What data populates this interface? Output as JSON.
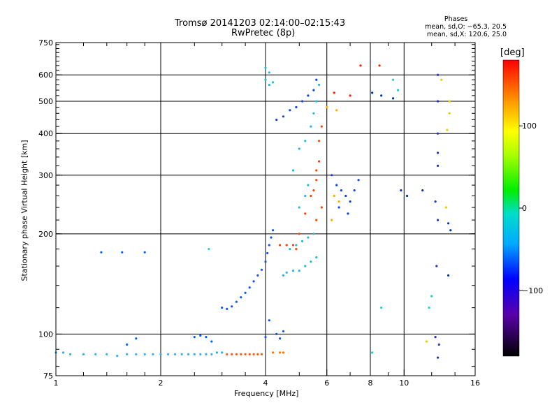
{
  "chart_data": {
    "type": "scatter",
    "title": "Tromsø 20141203 02:14:00–02:15:43",
    "subtitle": "RwPretec (8p)",
    "xlabel": "Frequency [MHz]",
    "ylabel": "Stationary phase Virtual Height [km]",
    "xscale": "log",
    "yscale": "log",
    "xlim": [
      1,
      16
    ],
    "ylim": [
      75,
      750
    ],
    "x_ticks": [
      1,
      2,
      4,
      6,
      8,
      10,
      16
    ],
    "x_tick_labels": [
      "1",
      "2",
      "4",
      "6",
      "8",
      "10",
      "16"
    ],
    "y_ticks": [
      75,
      100,
      200,
      300,
      400,
      500,
      600,
      750
    ],
    "y_tick_labels": [
      "75",
      "100",
      "200",
      "300",
      "400",
      "500",
      "600",
      "750"
    ],
    "x_gridlines": [
      2,
      4,
      6,
      8,
      10
    ],
    "y_gridlines": [
      100,
      200,
      300,
      400,
      500,
      600
    ],
    "grid": true,
    "phases_legend": {
      "title": "Phases",
      "line_o": "mean, sd,O: −65.3, 20.5",
      "line_x": "mean, sd,X: 120.6, 25.0"
    },
    "colorbar": {
      "label": "[deg]",
      "ticks": [
        100,
        0,
        -100
      ],
      "tick_labels": [
        "100",
        "0",
        "−100"
      ],
      "range": [
        -180,
        180
      ],
      "colormap": "rainbow"
    },
    "series": [
      {
        "color": "#33aaee",
        "points": [
          [
            1.0,
            88
          ],
          [
            1.05,
            88
          ],
          [
            1.1,
            87
          ],
          [
            1.2,
            87
          ],
          [
            1.3,
            87
          ],
          [
            1.4,
            87
          ],
          [
            1.5,
            86
          ],
          [
            1.6,
            87
          ],
          [
            1.7,
            87
          ],
          [
            1.8,
            87
          ],
          [
            1.9,
            87
          ],
          [
            2.0,
            87
          ],
          [
            2.1,
            87
          ],
          [
            2.2,
            87
          ],
          [
            2.3,
            87
          ],
          [
            2.4,
            87
          ],
          [
            2.5,
            87
          ],
          [
            2.6,
            87
          ],
          [
            2.7,
            87
          ],
          [
            2.8,
            87
          ],
          [
            2.9,
            88
          ],
          [
            3.0,
            88
          ]
        ]
      },
      {
        "color": "#0060ff",
        "points": [
          [
            1.35,
            176
          ],
          [
            1.55,
            176
          ],
          [
            1.8,
            176
          ],
          [
            1.6,
            93
          ],
          [
            1.7,
            97
          ],
          [
            2.5,
            98
          ],
          [
            2.6,
            99
          ],
          [
            2.7,
            98
          ],
          [
            2.8,
            95
          ]
        ]
      },
      {
        "color": "#33ccdd",
        "points": [
          [
            2.75,
            180
          ]
        ]
      },
      {
        "color": "#ff5500",
        "points": [
          [
            3.1,
            87
          ],
          [
            3.2,
            87
          ],
          [
            3.3,
            87
          ],
          [
            3.4,
            87
          ],
          [
            3.5,
            87
          ],
          [
            3.6,
            87
          ],
          [
            3.7,
            87
          ],
          [
            3.8,
            87
          ],
          [
            3.9,
            87
          ]
        ]
      },
      {
        "color": "#ff7700",
        "points": [
          [
            4.2,
            88
          ],
          [
            4.4,
            88
          ],
          [
            4.5,
            88
          ]
        ]
      },
      {
        "color": "#1155ee",
        "points": [
          [
            3.0,
            120
          ],
          [
            3.1,
            119
          ],
          [
            3.2,
            121
          ],
          [
            3.3,
            125
          ],
          [
            3.4,
            129
          ],
          [
            3.5,
            133
          ],
          [
            3.6,
            138
          ],
          [
            3.7,
            144
          ],
          [
            3.8,
            150
          ],
          [
            3.9,
            156
          ],
          [
            4.0,
            165
          ],
          [
            4.05,
            175
          ],
          [
            4.1,
            185
          ],
          [
            4.15,
            195
          ],
          [
            4.2,
            205
          ],
          [
            4.3,
            100
          ],
          [
            4.4,
            97
          ],
          [
            4.5,
            102
          ],
          [
            4.1,
            110
          ],
          [
            4.0,
            98
          ]
        ]
      },
      {
        "color": "#22bbdd",
        "points": [
          [
            4.0,
            580
          ],
          [
            4.1,
            610
          ],
          [
            4.0,
            630
          ],
          [
            4.1,
            560
          ],
          [
            4.2,
            570
          ],
          [
            4.5,
            150
          ],
          [
            4.6,
            153
          ],
          [
            4.8,
            155
          ],
          [
            5.0,
            155
          ],
          [
            5.2,
            160
          ],
          [
            5.4,
            165
          ],
          [
            5.6,
            170
          ],
          [
            4.7,
            180
          ],
          [
            4.9,
            185
          ],
          [
            5.1,
            190
          ],
          [
            5.3,
            195
          ],
          [
            5.5,
            200
          ],
          [
            5.0,
            240
          ],
          [
            5.2,
            260
          ],
          [
            5.3,
            280
          ],
          [
            4.8,
            310
          ],
          [
            5.0,
            360
          ],
          [
            5.2,
            380
          ],
          [
            5.4,
            420
          ],
          [
            5.5,
            460
          ],
          [
            5.6,
            500
          ],
          [
            5.7,
            560
          ]
        ]
      },
      {
        "color": "#ff4400",
        "points": [
          [
            4.4,
            185
          ],
          [
            4.6,
            185
          ],
          [
            4.8,
            185
          ],
          [
            4.9,
            180
          ],
          [
            5.0,
            200
          ],
          [
            5.2,
            230
          ],
          [
            5.4,
            260
          ],
          [
            5.6,
            290
          ],
          [
            5.7,
            330
          ],
          [
            5.7,
            380
          ],
          [
            5.8,
            420
          ],
          [
            5.6,
            310
          ],
          [
            5.5,
            270
          ],
          [
            5.8,
            240
          ],
          [
            5.6,
            220
          ]
        ]
      },
      {
        "color": "#1144dd",
        "points": [
          [
            4.3,
            440
          ],
          [
            4.5,
            450
          ],
          [
            4.7,
            470
          ],
          [
            4.9,
            480
          ],
          [
            5.1,
            500
          ],
          [
            5.3,
            520
          ],
          [
            5.5,
            540
          ],
          [
            5.6,
            580
          ],
          [
            6.2,
            300
          ],
          [
            6.4,
            280
          ],
          [
            6.6,
            270
          ],
          [
            6.8,
            260
          ],
          [
            7.0,
            250
          ],
          [
            7.2,
            270
          ],
          [
            7.4,
            290
          ],
          [
            6.5,
            240
          ],
          [
            6.9,
            230
          ]
        ]
      },
      {
        "color": "#ffaa00",
        "points": [
          [
            6.3,
            260
          ],
          [
            6.5,
            250
          ],
          [
            6.2,
            220
          ],
          [
            6.0,
            480
          ],
          [
            6.4,
            470
          ]
        ]
      },
      {
        "color": "#2233cc",
        "points": [
          [
            12.5,
            600
          ],
          [
            12.5,
            500
          ],
          [
            12.5,
            400
          ],
          [
            12.5,
            350
          ],
          [
            12.5,
            320
          ],
          [
            12.3,
            250
          ],
          [
            12.5,
            220
          ],
          [
            12.4,
            160
          ],
          [
            12.3,
            98
          ],
          [
            12.6,
            93
          ],
          [
            12.5,
            85
          ]
        ]
      },
      {
        "color": "#ff2200",
        "points": [
          [
            7.5,
            640
          ],
          [
            8.5,
            640
          ],
          [
            6.3,
            530
          ],
          [
            7.0,
            520
          ]
        ]
      },
      {
        "color": "#eecc00",
        "points": [
          [
            13.5,
            500
          ],
          [
            13.5,
            460
          ],
          [
            13.3,
            410
          ],
          [
            13.2,
            240
          ],
          [
            12.8,
            580
          ],
          [
            11.6,
            95
          ]
        ]
      },
      {
        "color": "#0033aa",
        "points": [
          [
            8.1,
            530
          ],
          [
            8.6,
            520
          ],
          [
            9.3,
            510
          ],
          [
            9.8,
            270
          ],
          [
            10.2,
            260
          ],
          [
            11.3,
            270
          ],
          [
            13.4,
            215
          ],
          [
            13.6,
            205
          ],
          [
            13.4,
            150
          ]
        ]
      },
      {
        "color": "#22cccc",
        "points": [
          [
            9.3,
            580
          ],
          [
            9.6,
            540
          ],
          [
            11.8,
            120
          ],
          [
            12.0,
            130
          ],
          [
            8.6,
            120
          ],
          [
            8.1,
            88
          ]
        ]
      }
    ]
  }
}
